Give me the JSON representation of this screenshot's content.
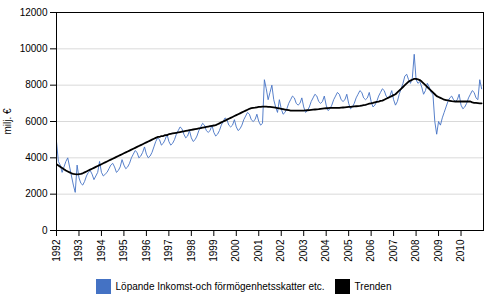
{
  "chart_data": {
    "type": "line",
    "ylabel": "milj. €",
    "x": [
      1992,
      1992.0833333333,
      1992.1666666667,
      1992.25,
      1992.3333333333,
      1992.4166666667,
      1992.5,
      1992.5833333333,
      1992.6666666667,
      1992.75,
      1992.8333333333,
      1992.9166666667,
      1993,
      1993.0833333333,
      1993.1666666667,
      1993.25,
      1993.3333333333,
      1993.4166666667,
      1993.5,
      1993.5833333333,
      1993.6666666667,
      1993.75,
      1993.8333333333,
      1993.9166666667,
      1994,
      1994.0833333333,
      1994.1666666667,
      1994.25,
      1994.3333333333,
      1994.4166666667,
      1994.5,
      1994.5833333333,
      1994.6666666667,
      1994.75,
      1994.8333333333,
      1994.9166666667,
      1995,
      1995.0833333333,
      1995.1666666667,
      1995.25,
      1995.3333333333,
      1995.4166666667,
      1995.5,
      1995.5833333333,
      1995.6666666667,
      1995.75,
      1995.8333333333,
      1995.9166666667,
      1996,
      1996.0833333333,
      1996.1666666667,
      1996.25,
      1996.3333333333,
      1996.4166666667,
      1996.5,
      1996.5833333333,
      1996.6666666667,
      1996.75,
      1996.8333333333,
      1996.9166666667,
      1997,
      1997.0833333333,
      1997.1666666667,
      1997.25,
      1997.3333333333,
      1997.4166666667,
      1997.5,
      1997.5833333333,
      1997.6666666667,
      1997.75,
      1997.8333333333,
      1997.9166666667,
      1998,
      1998.0833333333,
      1998.1666666667,
      1998.25,
      1998.3333333333,
      1998.4166666667,
      1998.5,
      1998.5833333333,
      1998.6666666667,
      1998.75,
      1998.8333333333,
      1998.9166666667,
      1999,
      1999.0833333333,
      1999.1666666667,
      1999.25,
      1999.3333333333,
      1999.4166666667,
      1999.5,
      1999.5833333333,
      1999.6666666667,
      1999.75,
      1999.8333333333,
      1999.9166666667,
      2000,
      2000.0833333333,
      2000.1666666667,
      2000.25,
      2000.3333333333,
      2000.4166666667,
      2000.5,
      2000.5833333333,
      2000.6666666667,
      2000.75,
      2000.8333333333,
      2000.9166666667,
      2001,
      2001.0833333333,
      2001.1666666667,
      2001.25,
      2001.3333333333,
      2001.4166666667,
      2001.5,
      2001.5833333333,
      2001.6666666667,
      2001.75,
      2001.8333333333,
      2001.9166666667,
      2002,
      2002.0833333333,
      2002.1666666667,
      2002.25,
      2002.3333333333,
      2002.4166666667,
      2002.5,
      2002.5833333333,
      2002.6666666667,
      2002.75,
      2002.8333333333,
      2002.9166666667,
      2003,
      2003.0833333333,
      2003.1666666667,
      2003.25,
      2003.3333333333,
      2003.4166666667,
      2003.5,
      2003.5833333333,
      2003.6666666667,
      2003.75,
      2003.8333333333,
      2003.9166666667,
      2004,
      2004.0833333333,
      2004.1666666667,
      2004.25,
      2004.3333333333,
      2004.4166666667,
      2004.5,
      2004.5833333333,
      2004.6666666667,
      2004.75,
      2004.8333333333,
      2004.9166666667,
      2005,
      2005.0833333333,
      2005.1666666667,
      2005.25,
      2005.3333333333,
      2005.4166666667,
      2005.5,
      2005.5833333333,
      2005.6666666667,
      2005.75,
      2005.8333333333,
      2005.9166666667,
      2006,
      2006.0833333333,
      2006.1666666667,
      2006.25,
      2006.3333333333,
      2006.4166666667,
      2006.5,
      2006.5833333333,
      2006.6666666667,
      2006.75,
      2006.8333333333,
      2006.9166666667,
      2007,
      2007.0833333333,
      2007.1666666667,
      2007.25,
      2007.3333333333,
      2007.4166666667,
      2007.5,
      2007.5833333333,
      2007.6666666667,
      2007.75,
      2007.8333333333,
      2007.9166666667,
      2008,
      2008.0833333333,
      2008.1666666667,
      2008.25,
      2008.3333333333,
      2008.4166666667,
      2008.5,
      2008.5833333333,
      2008.6666666667,
      2008.75,
      2008.8333333333,
      2008.9166666667,
      2009,
      2009.0833333333,
      2009.1666666667,
      2009.25,
      2009.3333333333,
      2009.4166666667,
      2009.5,
      2009.5833333333,
      2009.6666666667,
      2009.75,
      2009.8333333333,
      2009.9166666667,
      2010,
      2010.0833333333,
      2010.1666666667,
      2010.25,
      2010.3333333333,
      2010.4166666667,
      2010.5,
      2010.5833333333,
      2010.6666666667,
      2010.75,
      2010.8333333333,
      2010.9166666667
    ],
    "series": [
      {
        "name": "Löpande Inkomst-och förmögenhetsskatter etc.",
        "color": "#4472C4",
        "values": [
          4900,
          3800,
          3600,
          3200,
          3500,
          3800,
          4000,
          3500,
          3000,
          2500,
          2100,
          3600,
          2900,
          2600,
          2500,
          2700,
          3000,
          3200,
          3300,
          3100,
          2800,
          3000,
          3200,
          3800,
          3200,
          3000,
          3100,
          3200,
          3400,
          3600,
          3700,
          3500,
          3200,
          3300,
          3500,
          3900,
          3600,
          3400,
          3500,
          3700,
          4000,
          4200,
          4400,
          4300,
          4000,
          4100,
          4300,
          4600,
          4200,
          4000,
          4100,
          4300,
          4600,
          4900,
          5100,
          5000,
          4700,
          4800,
          5000,
          5300,
          4900,
          4700,
          4800,
          5000,
          5300,
          5500,
          5700,
          5600,
          5300,
          5100,
          5200,
          5500,
          5100,
          4900,
          5000,
          5200,
          5500,
          5700,
          5900,
          5800,
          5500,
          5400,
          5500,
          5800,
          5400,
          5200,
          5300,
          5500,
          5800,
          6000,
          6200,
          6100,
          5800,
          5700,
          5800,
          6100,
          5700,
          5500,
          5600,
          5800,
          6100,
          6300,
          6500,
          6400,
          6100,
          6000,
          6100,
          6400,
          6000,
          5800,
          5900,
          8300,
          7800,
          7200,
          7600,
          8000,
          7200,
          6800,
          6500,
          7200,
          6700,
          6400,
          6500,
          6700,
          7000,
          7200,
          7400,
          7300,
          7000,
          6900,
          7000,
          7300,
          6800,
          6500,
          6600,
          6800,
          7100,
          7300,
          7500,
          7400,
          7100,
          7000,
          7100,
          7400,
          6900,
          6600,
          6700,
          6900,
          7200,
          7400,
          7600,
          7500,
          7200,
          7100,
          7200,
          7500,
          7000,
          6700,
          6800,
          7000,
          7300,
          7500,
          7700,
          7600,
          7300,
          7200,
          7300,
          7600,
          7100,
          6800,
          6900,
          7100,
          7400,
          7600,
          7800,
          7700,
          7400,
          7300,
          7400,
          7700,
          7200,
          6900,
          7100,
          7500,
          7800,
          8100,
          8500,
          8600,
          8300,
          8100,
          8400,
          9700,
          8300,
          8100,
          8200,
          7900,
          7500,
          7700,
          8100,
          7900,
          7600,
          7500,
          6000,
          5300,
          6000,
          5800,
          6200,
          6500,
          6800,
          7100,
          7300,
          7400,
          7200,
          7100,
          7200,
          7500,
          6900,
          6700,
          6800,
          7000,
          7300,
          7500,
          7700,
          7600,
          7300,
          7200,
          8300,
          7800
        ]
      },
      {
        "name": "Trenden",
        "color": "#000000",
        "values": [
          3650,
          3580,
          3510,
          3440,
          3370,
          3300,
          3250,
          3200,
          3150,
          3120,
          3100,
          3090,
          3100,
          3120,
          3150,
          3200,
          3250,
          3300,
          3350,
          3400,
          3450,
          3500,
          3550,
          3600,
          3650,
          3700,
          3750,
          3800,
          3850,
          3900,
          3950,
          4000,
          4050,
          4100,
          4150,
          4200,
          4250,
          4300,
          4350,
          4400,
          4450,
          4500,
          4550,
          4600,
          4650,
          4700,
          4750,
          4800,
          4850,
          4900,
          4950,
          5000,
          5050,
          5100,
          5150,
          5150,
          5200,
          5200,
          5250,
          5250,
          5300,
          5320,
          5340,
          5360,
          5380,
          5400,
          5420,
          5440,
          5460,
          5480,
          5500,
          5520,
          5540,
          5560,
          5580,
          5600,
          5620,
          5640,
          5660,
          5680,
          5700,
          5720,
          5740,
          5760,
          5780,
          5800,
          5850,
          5900,
          5950,
          6000,
          6050,
          6100,
          6150,
          6200,
          6250,
          6300,
          6350,
          6400,
          6450,
          6500,
          6550,
          6600,
          6650,
          6700,
          6730,
          6750,
          6760,
          6780,
          6800,
          6810,
          6820,
          6820,
          6815,
          6810,
          6800,
          6790,
          6780,
          6760,
          6740,
          6720,
          6700,
          6680,
          6660,
          6640,
          6620,
          6600,
          6600,
          6600,
          6600,
          6600,
          6600,
          6600,
          6600,
          6610,
          6620,
          6630,
          6640,
          6650,
          6660,
          6670,
          6680,
          6700,
          6710,
          6720,
          6730,
          6740,
          6750,
          6750,
          6750,
          6750,
          6750,
          6750,
          6760,
          6770,
          6780,
          6790,
          6800,
          6810,
          6820,
          6830,
          6840,
          6850,
          6860,
          6880,
          6900,
          6920,
          6950,
          6980,
          7000,
          7020,
          7050,
          7080,
          7100,
          7130,
          7150,
          7200,
          7250,
          7300,
          7350,
          7400,
          7450,
          7500,
          7600,
          7700,
          7800,
          7900,
          8000,
          8100,
          8200,
          8250,
          8300,
          8350,
          8350,
          8320,
          8280,
          8200,
          8100,
          8000,
          7900,
          7800,
          7700,
          7600,
          7500,
          7400,
          7350,
          7300,
          7250,
          7200,
          7180,
          7160,
          7140,
          7120,
          7110,
          7100,
          7100,
          7100,
          7100,
          7100,
          7100,
          7100,
          7100,
          7100,
          7050,
          7030,
          7020,
          7010,
          7000,
          7000
        ]
      }
    ],
    "xlim": [
      1992,
      2011
    ],
    "xticks": [
      1992,
      1993,
      1994,
      1995,
      1996,
      1997,
      1998,
      1999,
      2000,
      2001,
      2002,
      2003,
      2004,
      2005,
      2006,
      2007,
      2008,
      2009,
      2010
    ],
    "ylim": [
      0,
      12000
    ],
    "yticks": [
      0,
      2000,
      4000,
      6000,
      8000,
      10000,
      12000
    ],
    "grid": true,
    "legend": "bottom"
  }
}
